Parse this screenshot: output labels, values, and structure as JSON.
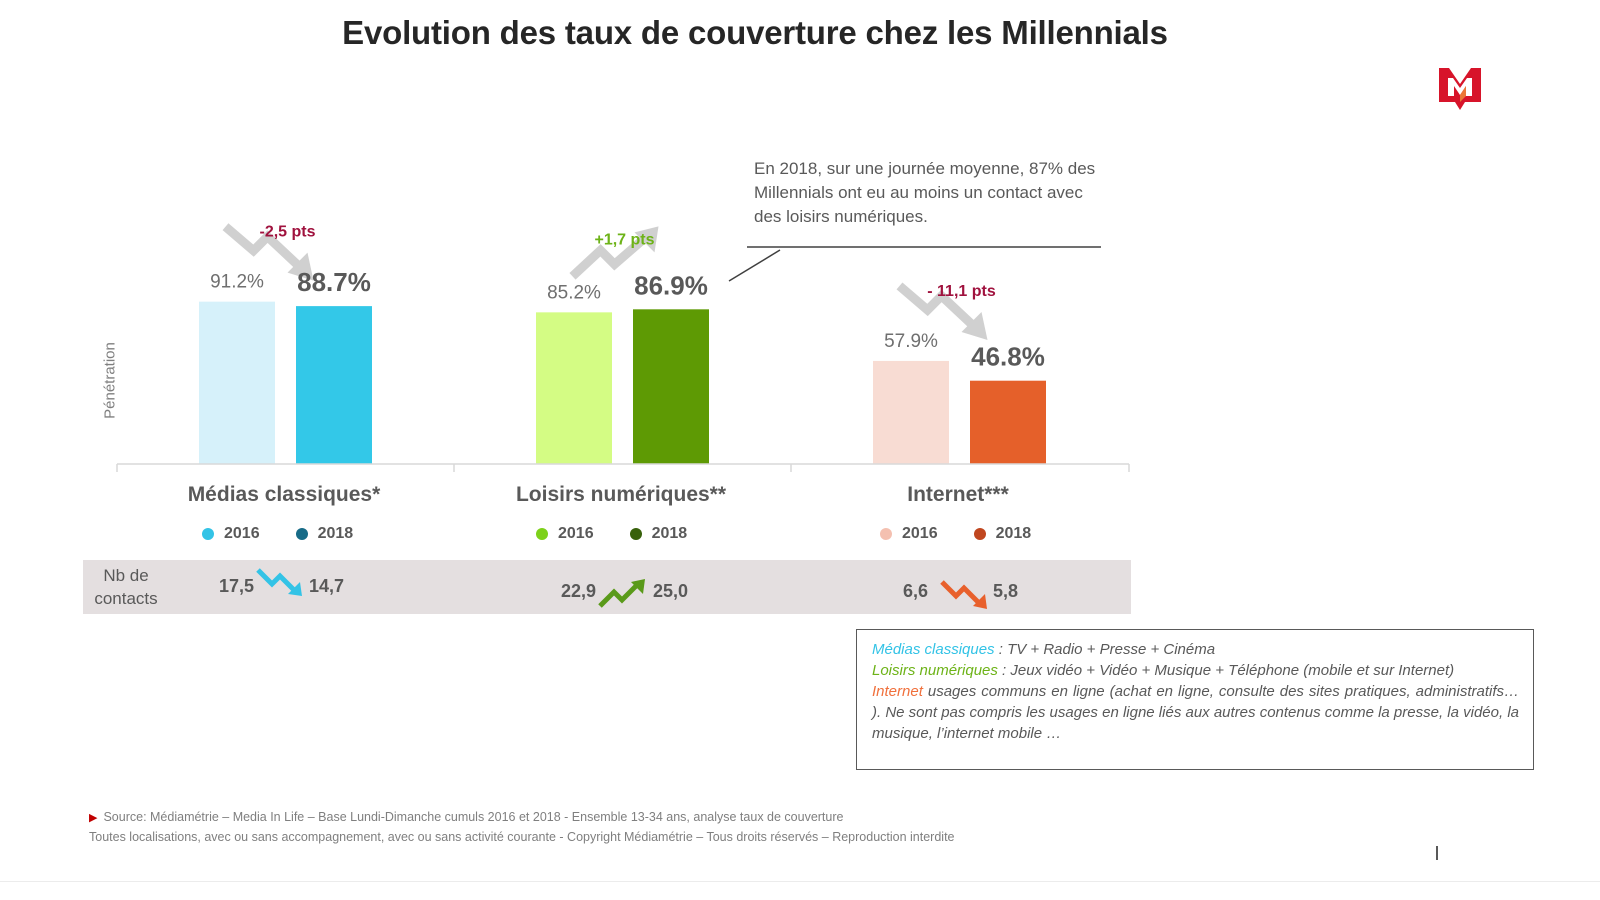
{
  "title": "Evolution des taux de couverture chez les Millennials",
  "logo": {
    "icon": "mediametrie-m-logo",
    "color": "#d7142a"
  },
  "y_axis_label": "Pénétration",
  "callout": {
    "text": "En 2018, sur une journée moyenne, 87% des Millennials ont eu au moins un contact avec des loisirs numériques."
  },
  "contacts_row": {
    "label_line1": "Nb de",
    "label_line2": "contacts",
    "items": [
      {
        "from": "17,5",
        "to": "14,7",
        "trend": "down",
        "arrow_color": "#33c3e6"
      },
      {
        "from": "22,9",
        "to": "25,0",
        "trend": "up",
        "arrow_color": "#5a9a1a"
      },
      {
        "from": "6,6",
        "to": "5,8",
        "trend": "down",
        "arrow_color": "#e8602c"
      }
    ]
  },
  "definitions": {
    "medias_term": "Médias classiques",
    "medias_text": " : TV + Radio + Presse + Cinéma",
    "loisirs_term": "Loisirs numériques",
    "loisirs_text": " : Jeux vidéo + Vidéo + Musique + Téléphone (mobile et sur Internet)",
    "internet_term": "Internet",
    "internet_text": " usages communs en ligne (achat en ligne, consulte des sites pratiques, administratifs… ). Ne sont pas compris les usages en ligne liés aux autres contenus comme la presse, la vidéo, la musique, l’internet mobile …"
  },
  "footer": {
    "line1": "Source: Médiamétrie  – Media In Life – Base Lundi-Dimanche cumuls 2016 et 2018 - Ensemble 13-34 ans, analyse taux de couverture",
    "line2": "Toutes localisations, avec ou sans accompagnement,  avec ou sans activité courante - Copyright Médiamétrie – Tous droits réservés – Reproduction interdite"
  },
  "chart_data": {
    "type": "bar",
    "title": "Evolution des taux de couverture chez les Millennials",
    "xlabel": "",
    "ylabel": "Pénétration",
    "ylim": [
      0,
      100
    ],
    "grid": false,
    "legend": "below-each-category",
    "categories": [
      "Médias classiques*",
      "Loisirs numériques**",
      "Internet***"
    ],
    "series": [
      {
        "name": "2016",
        "values": [
          91.2,
          85.2,
          57.9
        ],
        "labels": [
          "91.2%",
          "85.2%",
          "57.9%"
        ],
        "colors": [
          "#d6f1fa",
          "#d4fc84",
          "#f8dcd3"
        ],
        "legend_colors": [
          "#33c3e6",
          "#7dd11a",
          "#f4c0b0"
        ]
      },
      {
        "name": "2018",
        "values": [
          88.7,
          86.9,
          46.8
        ],
        "labels": [
          "88.7%",
          "86.9%",
          "46.8%"
        ],
        "colors": [
          "#33c8e8",
          "#5e9a04",
          "#e5602a"
        ],
        "legend_colors": [
          "#176b87",
          "#38610b",
          "#c0461f"
        ]
      }
    ],
    "annotations": [
      {
        "category": "Médias classiques*",
        "text": "-2,5 pts",
        "trend": "down",
        "color": "#a0123e"
      },
      {
        "category": "Loisirs numériques**",
        "text": "+1,7 pts",
        "trend": "up",
        "color": "#6db318"
      },
      {
        "category": "Internet***",
        "text": "- 11,1 pts",
        "trend": "down",
        "color": "#a0123e"
      }
    ]
  }
}
